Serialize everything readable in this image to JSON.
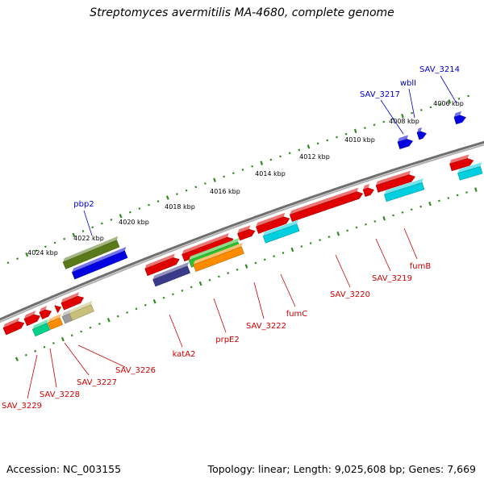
{
  "title": "Streptomyces avermitilis MA-4680, complete genome",
  "footer": {
    "accession": "Accession: NC_003155",
    "summary": "Topology: linear; Length: 9,025,608 bp; Genes: 7,669"
  },
  "colors": {
    "backbone": "#8a8a8a",
    "ticks": "#2f8a1f",
    "kbp_label": "#000000",
    "top_gene_label": "#0000cc",
    "bottom_gene_label": "#cc0000"
  },
  "scale": {
    "labels": [
      "4006 kbp",
      "4008 kbp",
      "4010 kbp",
      "4012 kbp",
      "4014 kbp",
      "4016 kbp",
      "4018 kbp",
      "4020 kbp",
      "4022 kbp",
      "4024 kbp"
    ]
  },
  "top_gene_labels": [
    "SAV_3214",
    "wblI",
    "SAV_3217",
    "pbp2"
  ],
  "bottom_gene_labels": [
    "fumB",
    "SAV_3219",
    "SAV_3220",
    "fumC",
    "SAV_3222",
    "prpE2",
    "katA2",
    "SAV_3226",
    "SAV_3227",
    "SAV_3228",
    "SAV_3229"
  ],
  "features": {
    "colors": [
      "#e00000",
      "#00cfe0",
      "#0000e0",
      "#5a7a1a",
      "#3a3a8a",
      "#2ec02e",
      "#ff8c00",
      "#00d08a",
      "#9a9a9a",
      "#c8c07a"
    ]
  }
}
